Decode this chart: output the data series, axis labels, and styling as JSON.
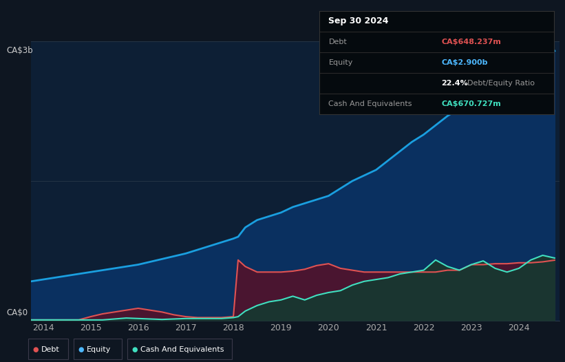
{
  "bg_color": "#0e1621",
  "plot_bg_color": "#0d1f35",
  "title_box": {
    "date": "Sep 30 2024",
    "debt_label": "Debt",
    "debt_value": "CA$648.237m",
    "debt_color": "#e05252",
    "equity_label": "Equity",
    "equity_value": "CA$2.900b",
    "equity_color": "#4db8ff",
    "ratio_bold": "22.4%",
    "ratio_text": "Debt/Equity Ratio",
    "cash_label": "Cash And Equivalents",
    "cash_value": "CA$670.727m",
    "cash_color": "#40e0c0"
  },
  "y_label_top": "CA$3b",
  "y_label_bottom": "CA$0",
  "x_ticks": [
    "2014",
    "2015",
    "2016",
    "2017",
    "2018",
    "2019",
    "2020",
    "2021",
    "2022",
    "2023",
    "2024"
  ],
  "legend": [
    {
      "label": "Debt",
      "color": "#e05252"
    },
    {
      "label": "Equity",
      "color": "#4db8ff"
    },
    {
      "label": "Cash And Equivalents",
      "color": "#40e0c0"
    }
  ],
  "equity_line_color": "#1a9fe0",
  "equity_fill_color": "#0a3060",
  "debt_line_color": "#e05252",
  "debt_fill_color": "#4a1530",
  "cash_line_color": "#40e0c0",
  "cash_fill_color": "#1a3530",
  "years": [
    2013.75,
    2014.0,
    2014.25,
    2014.5,
    2014.75,
    2015.0,
    2015.25,
    2015.5,
    2015.75,
    2016.0,
    2016.25,
    2016.5,
    2016.75,
    2017.0,
    2017.25,
    2017.5,
    2017.75,
    2018.0,
    2018.1,
    2018.25,
    2018.5,
    2018.75,
    2019.0,
    2019.25,
    2019.5,
    2019.75,
    2020.0,
    2020.25,
    2020.5,
    2020.75,
    2021.0,
    2021.25,
    2021.5,
    2021.75,
    2022.0,
    2022.25,
    2022.5,
    2022.75,
    2023.0,
    2023.25,
    2023.5,
    2023.75,
    2024.0,
    2024.25,
    2024.5,
    2024.75
  ],
  "equity": [
    0.42,
    0.44,
    0.46,
    0.48,
    0.5,
    0.52,
    0.54,
    0.56,
    0.58,
    0.6,
    0.63,
    0.66,
    0.69,
    0.72,
    0.76,
    0.8,
    0.84,
    0.88,
    0.9,
    1.0,
    1.08,
    1.12,
    1.16,
    1.22,
    1.26,
    1.3,
    1.34,
    1.42,
    1.5,
    1.56,
    1.62,
    1.72,
    1.82,
    1.92,
    2.0,
    2.1,
    2.2,
    2.28,
    2.38,
    2.48,
    2.58,
    2.68,
    2.75,
    2.8,
    2.85,
    2.9
  ],
  "debt": [
    0.005,
    0.005,
    0.005,
    0.005,
    0.005,
    0.04,
    0.07,
    0.09,
    0.11,
    0.13,
    0.11,
    0.09,
    0.06,
    0.04,
    0.03,
    0.03,
    0.03,
    0.04,
    0.65,
    0.58,
    0.52,
    0.52,
    0.52,
    0.53,
    0.55,
    0.59,
    0.61,
    0.56,
    0.54,
    0.52,
    0.52,
    0.52,
    0.52,
    0.52,
    0.52,
    0.52,
    0.54,
    0.54,
    0.6,
    0.6,
    0.61,
    0.61,
    0.62,
    0.62,
    0.63,
    0.648
  ],
  "cash": [
    0.005,
    0.005,
    0.005,
    0.005,
    0.005,
    0.005,
    0.005,
    0.015,
    0.025,
    0.02,
    0.015,
    0.01,
    0.015,
    0.02,
    0.02,
    0.02,
    0.02,
    0.03,
    0.04,
    0.1,
    0.16,
    0.2,
    0.22,
    0.26,
    0.22,
    0.27,
    0.3,
    0.32,
    0.38,
    0.42,
    0.44,
    0.46,
    0.5,
    0.52,
    0.54,
    0.65,
    0.58,
    0.54,
    0.6,
    0.64,
    0.56,
    0.52,
    0.56,
    0.65,
    0.7,
    0.671
  ]
}
